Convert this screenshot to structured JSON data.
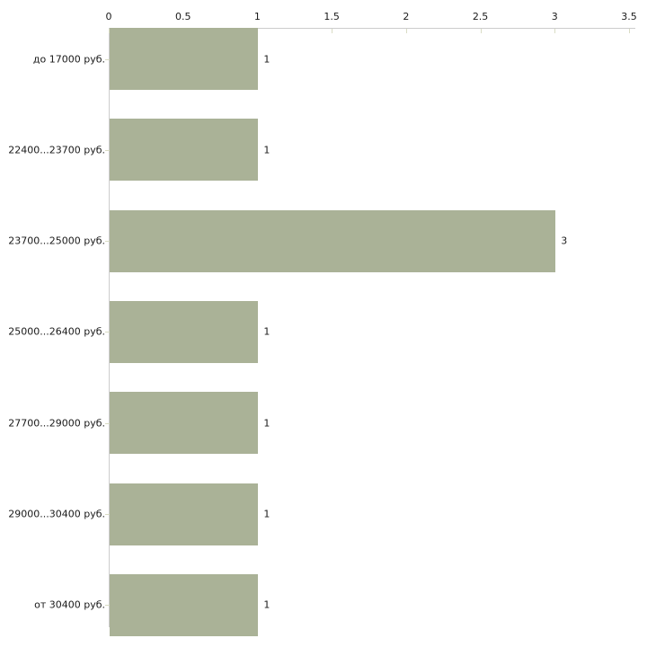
{
  "chart_data": {
    "type": "bar",
    "orientation": "horizontal",
    "title": "",
    "xlabel": "",
    "ylabel": "",
    "categories": [
      "до 17000 руб.",
      "22400...23700 руб.",
      "23700...25000 руб.",
      "25000...26400 руб.",
      "27700...29000 руб.",
      "29000...30400 руб.",
      "от 30400 руб."
    ],
    "values": [
      1,
      1,
      3,
      1,
      1,
      1,
      1
    ],
    "value_labels": [
      "1",
      "1",
      "3",
      "1",
      "1",
      "1",
      "1"
    ],
    "x_ticks": [
      0,
      0.5,
      1,
      1.5,
      2,
      2.5,
      3,
      3.5
    ],
    "x_tick_labels": [
      "0",
      "0.5",
      "1",
      "1.5",
      "2",
      "2.5",
      "3",
      "3.5"
    ],
    "xlim": [
      0,
      3.5
    ],
    "axis_position": "top",
    "grid": false,
    "legend": null,
    "colors": {
      "bar": "#aab297",
      "axis_line": "#cccccc",
      "tick": "#d9dcc4",
      "text": "#1a1a1a"
    }
  }
}
